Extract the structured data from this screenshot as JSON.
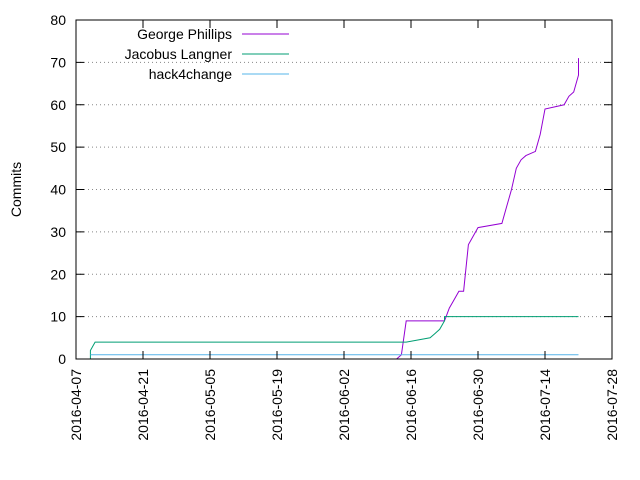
{
  "chart_data": {
    "type": "line",
    "title": "",
    "xlabel": "",
    "ylabel": "Commits",
    "ylim": [
      0,
      80
    ],
    "xlim": [
      "2016-04-07",
      "2016-07-28"
    ],
    "x_ticks": [
      "2016-04-07",
      "2016-04-21",
      "2016-05-05",
      "2016-05-19",
      "2016-06-02",
      "2016-06-16",
      "2016-06-30",
      "2016-07-14",
      "2016-07-28"
    ],
    "y_ticks": [
      0,
      10,
      20,
      30,
      40,
      50,
      60,
      70,
      80
    ],
    "grid": "y dotted",
    "legend_position": "top-left",
    "series": [
      {
        "name": "George Phillips",
        "color": "#9400d3",
        "points": [
          [
            "2016-04-16",
            0
          ],
          [
            "2016-06-13",
            0
          ],
          [
            "2016-06-14",
            1
          ],
          [
            "2016-06-15",
            9
          ],
          [
            "2016-06-23",
            9
          ],
          [
            "2016-06-24",
            12
          ],
          [
            "2016-06-25",
            14
          ],
          [
            "2016-06-26",
            16
          ],
          [
            "2016-06-27",
            16
          ],
          [
            "2016-06-28",
            27
          ],
          [
            "2016-06-29",
            29
          ],
          [
            "2016-06-30",
            31
          ],
          [
            "2016-07-05",
            32
          ],
          [
            "2016-07-06",
            36
          ],
          [
            "2016-07-07",
            40
          ],
          [
            "2016-07-08",
            45
          ],
          [
            "2016-07-09",
            47
          ],
          [
            "2016-07-10",
            48
          ],
          [
            "2016-07-12",
            49
          ],
          [
            "2016-07-13",
            53
          ],
          [
            "2016-07-14",
            59
          ],
          [
            "2016-07-18",
            60
          ],
          [
            "2016-07-19",
            62
          ],
          [
            "2016-07-20",
            63
          ],
          [
            "2016-07-21",
            67
          ],
          [
            "2016-07-21",
            71
          ]
        ]
      },
      {
        "name": "Jacobus Langner",
        "color": "#009e73",
        "points": [
          [
            "2016-04-10",
            0
          ],
          [
            "2016-04-10",
            2
          ],
          [
            "2016-04-11",
            4
          ],
          [
            "2016-06-15",
            4
          ],
          [
            "2016-06-20",
            5
          ],
          [
            "2016-06-21",
            6
          ],
          [
            "2016-06-22",
            7
          ],
          [
            "2016-06-23",
            9
          ],
          [
            "2016-06-23",
            10
          ],
          [
            "2016-07-21",
            10
          ]
        ]
      },
      {
        "name": "hack4change",
        "color": "#56b4e9",
        "points": [
          [
            "2016-04-10",
            1
          ],
          [
            "2016-07-21",
            1
          ]
        ]
      }
    ]
  }
}
